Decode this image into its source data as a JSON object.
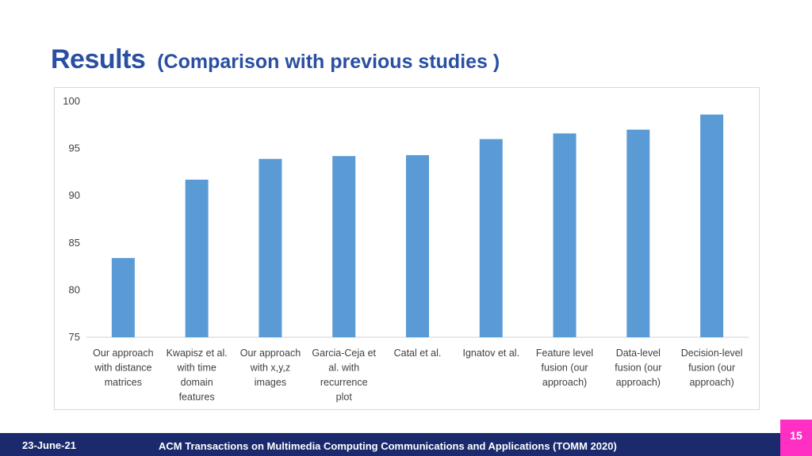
{
  "slide": {
    "title": "Results",
    "subtitle": "(Comparison with previous studies )",
    "footer_date": "23-June-21",
    "footer_journal": "ACM Transactions on Multimedia Computing Communications and Applications (TOMM 2020)",
    "page_number": "15"
  },
  "colors": {
    "bar": "#5b9bd5",
    "title": "#2a4fa2",
    "footer": "#1a2a6c",
    "page_badge": "#ff2fc4"
  },
  "chart_data": {
    "type": "bar",
    "title": "",
    "xlabel": "",
    "ylabel": "",
    "ylim": [
      75,
      100
    ],
    "yticks": [
      75,
      80,
      85,
      90,
      95,
      100
    ],
    "grid": false,
    "categories": [
      [
        "Our approach",
        "with distance",
        "matrices"
      ],
      [
        "Kwapisz et al.",
        "with time",
        "domain",
        "features"
      ],
      [
        "Our approach",
        "with x,y,z",
        "images"
      ],
      [
        "Garcia-Ceja et",
        "al. with",
        "recurrence",
        "plot"
      ],
      [
        "Catal et al."
      ],
      [
        "Ignatov et al."
      ],
      [
        "Feature level",
        "fusion (our",
        "approach)"
      ],
      [
        "Data-level",
        "fusion (our",
        "approach)"
      ],
      [
        "Decision-level",
        "fusion (our",
        "approach)"
      ]
    ],
    "values": [
      83.4,
      91.7,
      93.9,
      94.2,
      94.3,
      96.0,
      96.6,
      97.0,
      98.6
    ]
  }
}
